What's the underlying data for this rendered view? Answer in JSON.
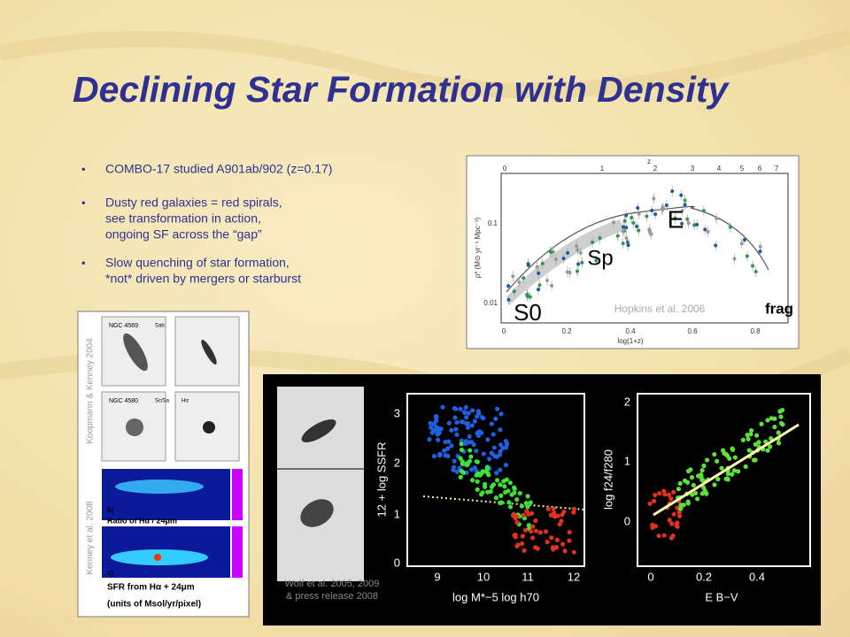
{
  "title": "Declining Star Formation with Density",
  "bullets": [
    [
      "COMBO-17 studied A901ab/902 (z=0.17)"
    ],
    [
      "Dusty red galaxies = red spirals,",
      "see transformation in action,",
      "ongoing SF across the “gap”"
    ],
    [
      "Slow quenching of star formation,",
      "*not* driven by mergers or starburst"
    ]
  ],
  "hopkins": {
    "top_label": "z",
    "top_ticks": [
      "0",
      "1",
      "2",
      "3",
      "4",
      "5",
      "6",
      "7"
    ],
    "x_ticks": [
      "0",
      "0.2",
      "0.4",
      "0.6",
      "0.8"
    ],
    "x_label": "log(1+z)",
    "y_ticks": [
      "0.1",
      "0.01"
    ],
    "y_label": "ρ* (M⊙ yr⁻¹ Mpc⁻³)",
    "annotations": [
      "E",
      "Sp",
      "S0",
      "frag"
    ],
    "credit": "Hopkins et al. 2006"
  },
  "kenney": {
    "credit_top": "Koopmann & Kenney 2004",
    "credit_bottom": "Kenney et al. 2008",
    "panel_texts": [
      "NGC 4569",
      "Sab",
      "NGC 4580",
      "Sc/Sa",
      "Hα",
      "b)",
      "Ratio of Hα / 24μm",
      "c)",
      "SFR from Hα + 24μm",
      "(units of Msol/yr/pixel)"
    ]
  },
  "wolf": {
    "credit": [
      "Wolf et al. 2005, 2009",
      "& press release 2008"
    ],
    "plot1": {
      "y_label": "12 + log SSFR",
      "y_ticks": [
        "0",
        "1",
        "2",
        "3"
      ],
      "x_ticks": [
        "9",
        "10",
        "11",
        "12"
      ],
      "x_label": "log M*−5 log h70"
    },
    "plot2": {
      "y_label": "log f24/f280",
      "y_ticks": [
        "0",
        "1",
        "2"
      ],
      "x_ticks": [
        "0",
        "0.2",
        "0.4"
      ],
      "x_label": "E B−V"
    }
  }
}
